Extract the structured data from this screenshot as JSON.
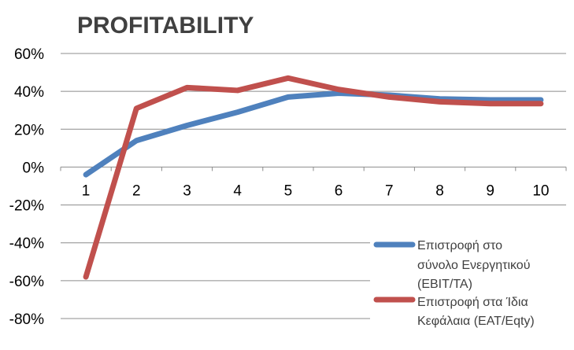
{
  "chart_data": {
    "type": "line",
    "title": "PROFITABILITY",
    "xlabel": "",
    "ylabel": "",
    "x": [
      "1",
      "2",
      "3",
      "4",
      "5",
      "6",
      "7",
      "8",
      "9",
      "10"
    ],
    "ylim": [
      -0.8,
      0.6
    ],
    "y_ticks": [
      "60%",
      "40%",
      "20%",
      "0%",
      "-20%",
      "-40%",
      "-60%",
      "-80%"
    ],
    "grid": true,
    "legend_position": "bottom-right",
    "series": [
      {
        "name_lines": [
          "Επιστροφή στο",
          "σύνολο  Ενεργητικού",
          "(EBIT/TA)"
        ],
        "color": "#4F81BD",
        "values": [
          -0.04,
          0.14,
          0.22,
          0.29,
          0.37,
          0.39,
          0.38,
          0.36,
          0.355,
          0.355
        ]
      },
      {
        "name_lines": [
          "Επιστροφή στα Ίδια",
          "Κεφάλαια (EAT/Eqty)"
        ],
        "color": "#C0504D",
        "values": [
          -0.58,
          0.31,
          0.42,
          0.405,
          0.47,
          0.41,
          0.37,
          0.345,
          0.335,
          0.335
        ]
      }
    ]
  }
}
